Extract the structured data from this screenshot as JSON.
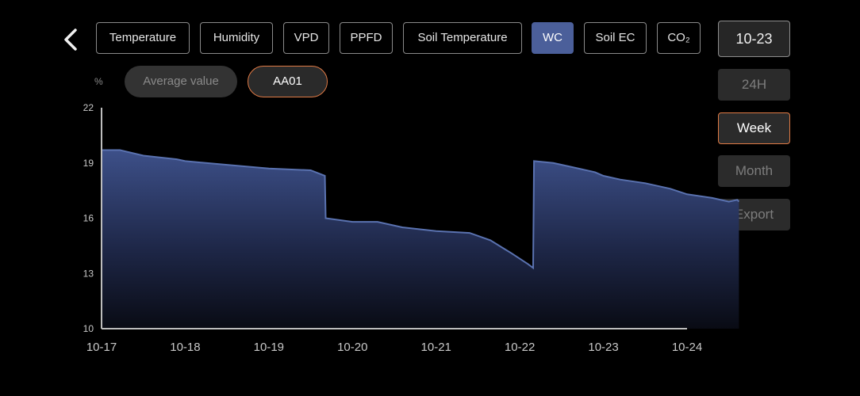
{
  "tabs": [
    {
      "label": "Temperature",
      "active": false
    },
    {
      "label": "Humidity",
      "active": false
    },
    {
      "label": "VPD",
      "active": false
    },
    {
      "label": "PPFD",
      "active": false
    },
    {
      "label": "Soil Temperature",
      "active": false
    },
    {
      "label": "WC",
      "active": true
    },
    {
      "label": "Soil EC",
      "active": false
    },
    {
      "label": "CO₂",
      "active": false
    }
  ],
  "date_button": "10-23",
  "ranges": [
    {
      "label": "24H",
      "active": false
    },
    {
      "label": "Week",
      "active": true
    },
    {
      "label": "Month",
      "active": false
    }
  ],
  "export_label": "Export",
  "unit": "%",
  "pills": {
    "average": "Average value",
    "device": "AA01"
  },
  "colors": {
    "accent": "#e07a45",
    "active_tab": "#4b5f9a",
    "series_line": "#5a72b0"
  },
  "chart_data": {
    "type": "area",
    "xlabel": "",
    "ylabel": "%",
    "ylim": [
      10,
      22
    ],
    "yticks": [
      22,
      19,
      16,
      13,
      10
    ],
    "xticks": [
      "10-17",
      "10-18",
      "10-19",
      "10-20",
      "10-21",
      "10-22",
      "10-23",
      "10-24"
    ],
    "grid": false,
    "series": [
      {
        "values": [
          [
            0.0,
            19.7
          ],
          [
            0.22,
            19.7
          ],
          [
            0.5,
            19.4
          ],
          [
            0.9,
            19.2
          ],
          [
            1.0,
            19.1
          ],
          [
            1.5,
            18.9
          ],
          [
            2.0,
            18.7
          ],
          [
            2.5,
            18.6
          ],
          [
            2.67,
            18.3
          ],
          [
            2.68,
            16.0
          ],
          [
            3.0,
            15.8
          ],
          [
            3.3,
            15.8
          ],
          [
            3.6,
            15.5
          ],
          [
            4.0,
            15.3
          ],
          [
            4.4,
            15.2
          ],
          [
            4.65,
            14.8
          ],
          [
            4.9,
            14.1
          ],
          [
            5.1,
            13.5
          ],
          [
            5.16,
            13.3
          ],
          [
            5.17,
            19.1
          ],
          [
            5.4,
            19.0
          ],
          [
            5.6,
            18.8
          ],
          [
            5.9,
            18.5
          ],
          [
            6.0,
            18.3
          ],
          [
            6.2,
            18.1
          ],
          [
            6.5,
            17.9
          ],
          [
            6.8,
            17.6
          ],
          [
            7.0,
            17.3
          ],
          [
            7.3,
            17.1
          ],
          [
            7.5,
            16.9
          ],
          [
            7.6,
            17.0
          ],
          [
            7.62,
            16.9
          ]
        ]
      }
    ]
  }
}
